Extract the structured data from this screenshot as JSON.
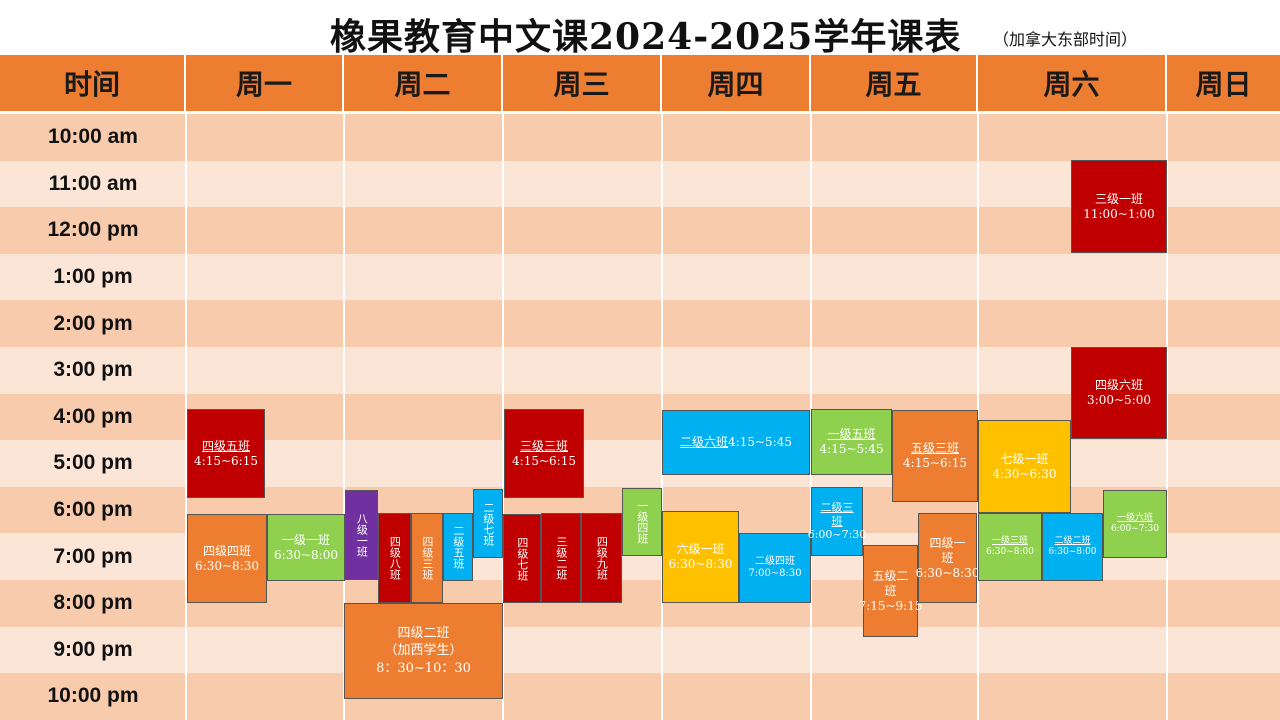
{
  "title": "橡果教育中文课2024-2025学年课表",
  "title_note": "（加拿大东部时间）",
  "headers": [
    "时间",
    "周一",
    "周二",
    "周三",
    "周四",
    "周五",
    "周六",
    "周日"
  ],
  "times": [
    "10:00 am",
    "11:00 am",
    "12:00 pm",
    "1:00 pm",
    "2:00 pm",
    "3:00 pm",
    "4:00 pm",
    "5:00 pm",
    "6:00 pm",
    "7:00 pm",
    "8:00 pm",
    "9:00 pm",
    "10:00 pm"
  ],
  "colors": {
    "header": "#ed7d31",
    "row_dark": "#f8cbad",
    "row_light": "#fbe5d6",
    "red": "#c00000",
    "orange": "#ed7d31",
    "green": "#8fd14f",
    "blue": "#00b0f0",
    "yellow": "#ffc000",
    "purple": "#7030a0"
  },
  "classes": [
    {
      "name": "四级五班",
      "time": "4:15~6:15",
      "day": "周一",
      "color": "red"
    },
    {
      "name": "四级四班",
      "time": "6:30~8:30",
      "day": "周一",
      "color": "orange"
    },
    {
      "name": "一级一班",
      "time": "6:30~8:00",
      "day": "周一",
      "color": "green"
    },
    {
      "name": "八级一班",
      "time": "",
      "day": "周二",
      "color": "purple"
    },
    {
      "name": "四级八班",
      "time": "",
      "day": "周二",
      "color": "red"
    },
    {
      "name": "四级三班",
      "time": "",
      "day": "周二",
      "color": "orange"
    },
    {
      "name": "二级五班",
      "time": "",
      "day": "周二",
      "color": "blue"
    },
    {
      "name": "二级七班",
      "time": "",
      "day": "周二",
      "color": "blue"
    },
    {
      "name": "四级二班",
      "subtitle": "（加西学生）",
      "time": "8：30~10：30",
      "day": "周二",
      "color": "orange"
    },
    {
      "name": "三级三班",
      "time": "4:15~6:15",
      "day": "周三",
      "color": "red"
    },
    {
      "name": "四级七班",
      "time": "",
      "day": "周三",
      "color": "red"
    },
    {
      "name": "三级二班",
      "time": "",
      "day": "周三",
      "color": "red"
    },
    {
      "name": "四级九班",
      "time": "",
      "day": "周三",
      "color": "red"
    },
    {
      "name": "一级四班",
      "time": "",
      "day": "周三",
      "color": "green"
    },
    {
      "name": "二级六班",
      "time": "4:15~5:45",
      "day": "周四",
      "color": "blue"
    },
    {
      "name": "六级一班",
      "time": "6:30~8:30",
      "day": "周四",
      "color": "yellow"
    },
    {
      "name": "二级四班",
      "time": "7:00~8:30",
      "day": "周四",
      "color": "blue"
    },
    {
      "name": "一级五班",
      "time": "4:15~5:45",
      "day": "周五",
      "color": "green"
    },
    {
      "name": "五级三班",
      "time": "4:15~6:15",
      "day": "周五",
      "color": "orange"
    },
    {
      "name": "二级三班",
      "time": "6:00~7:30",
      "day": "周五",
      "color": "blue"
    },
    {
      "name": "五级二班",
      "time": "7:15~9:15",
      "day": "周五",
      "color": "orange"
    },
    {
      "name": "四级一班",
      "time": "6:30~8:30",
      "day": "周五",
      "color": "orange"
    },
    {
      "name": "三级一班",
      "time": "11:00~1:00",
      "day": "周六",
      "color": "red"
    },
    {
      "name": "四级六班",
      "time": "3:00~5:00",
      "day": "周六",
      "color": "red"
    },
    {
      "name": "七级一班",
      "time": "4:30~6:30",
      "day": "周六",
      "color": "yellow"
    },
    {
      "name": "一级三班",
      "time": "6:30~8:00",
      "day": "周六",
      "color": "green"
    },
    {
      "name": "二级二班",
      "time": "6:30~8:00",
      "day": "周六",
      "color": "blue"
    },
    {
      "name": "一级六班",
      "time": "6:00~7:30",
      "day": "周六",
      "color": "green"
    }
  ]
}
